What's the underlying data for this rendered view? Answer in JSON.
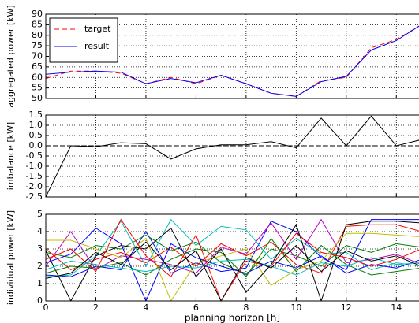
{
  "chart_data": [
    {
      "type": "line",
      "ylabel": "aggregated power [kW]",
      "x": [
        0,
        1,
        2,
        3,
        4,
        5,
        6,
        7,
        8,
        9,
        10,
        11,
        12,
        13,
        14,
        15
      ],
      "series": [
        {
          "name": "target",
          "color": "#ff0000",
          "style": "dashed",
          "values": [
            59.5,
            63,
            63,
            62,
            57,
            60,
            57,
            61,
            57,
            52.5,
            51,
            58.5,
            60,
            74,
            78,
            85
          ]
        },
        {
          "name": "result",
          "color": "#0000ff",
          "style": "solid",
          "values": [
            61.5,
            62.5,
            63,
            62.5,
            57,
            59.5,
            57.5,
            61,
            57,
            52.5,
            51,
            58,
            60.5,
            73,
            77.5,
            85
          ]
        }
      ],
      "xlim": [
        0,
        15
      ],
      "xticks": [
        0,
        2,
        4,
        6,
        8,
        10,
        12,
        14
      ],
      "xtick_labels": false,
      "ylim": [
        50,
        90
      ],
      "yticks": [
        50,
        55,
        60,
        65,
        70,
        75,
        80,
        85,
        90
      ],
      "grid": true,
      "legend": "upper left"
    },
    {
      "type": "line",
      "ylabel": "imbalance [kW]",
      "x": [
        0,
        1,
        2,
        3,
        4,
        5,
        6,
        7,
        8,
        9,
        10,
        11,
        12,
        13,
        14,
        15
      ],
      "series": [
        {
          "color": "#000000",
          "style": "solid",
          "values": [
            -2.5,
            0,
            -0.05,
            0.15,
            0.1,
            -0.65,
            -0.15,
            0.05,
            0.05,
            0.2,
            -0.1,
            1.35,
            0,
            1.45,
            0,
            0.3
          ]
        }
      ],
      "hline": 0,
      "xlim": [
        0,
        15
      ],
      "xticks": [
        0,
        2,
        4,
        6,
        8,
        10,
        12,
        14
      ],
      "xtick_labels": false,
      "ylim": [
        -2.5,
        1.5
      ],
      "yticks": [
        1.5,
        {
          "value": 1,
          "label": "1.0"
        },
        0.5,
        {
          "value": 0,
          "label": "0.0"
        },
        -0.5,
        {
          "value": -1,
          "label": "-1.0"
        },
        -1.5,
        {
          "value": -2,
          "label": "-2.0"
        },
        -2.5
      ],
      "grid": true
    },
    {
      "type": "line",
      "ylabel": "individual power [kW]",
      "xlabel": "planning horizon [h]",
      "x": [
        0,
        1,
        2,
        3,
        4,
        5,
        6,
        7,
        8,
        9,
        10,
        11,
        12,
        13,
        14,
        15
      ],
      "series": [
        {
          "color": "#0000ff",
          "style": "solid",
          "values": [
            1.5,
            1.4,
            2.0,
            1.8,
            4.0,
            1.6,
            2.2,
            1.7,
            1.9,
            4.6,
            4.0,
            2.5,
            1.8,
            4.7,
            4.7,
            4.7
          ]
        },
        {
          "color": "#008000",
          "style": "solid",
          "values": [
            2.8,
            2.5,
            3.2,
            3.0,
            3.8,
            2.9,
            3.4,
            2.2,
            1.5,
            3.0,
            2.6,
            2.0,
            3.2,
            2.8,
            3.3,
            3.1
          ]
        },
        {
          "color": "#ff0000",
          "style": "solid",
          "values": [
            3.0,
            1.8,
            2.4,
            2.8,
            2.2,
            3.1,
            2.0,
            3.3,
            2.6,
            3.4,
            2.1,
            1.6,
            4.3,
            4.4,
            4.4,
            4.0
          ]
        },
        {
          "color": "#00bfbf",
          "style": "solid",
          "values": [
            1.4,
            1.5,
            2.6,
            4.6,
            2.0,
            4.7,
            3.2,
            4.3,
            4.1,
            2.4,
            3.6,
            2.7,
            2.8,
            1.8,
            2.2,
            2.0
          ]
        },
        {
          "color": "#bf00bf",
          "style": "solid",
          "values": [
            2.0,
            4.0,
            1.8,
            2.6,
            2.4,
            2.1,
            1.6,
            3.1,
            2.7,
            4.5,
            2.4,
            4.7,
            2.2,
            2.4,
            2.7,
            2.1
          ]
        },
        {
          "color": "#bfbf00",
          "style": "solid",
          "values": [
            3.5,
            3.5,
            3.0,
            2.5,
            3.6,
            0.0,
            2.2,
            2.6,
            3.0,
            0.9,
            1.8,
            2.3,
            3.9,
            3.9,
            3.8,
            3.7
          ]
        },
        {
          "color": "#000000",
          "style": "solid",
          "values": [
            2.9,
            0.0,
            2.6,
            3.2,
            3.0,
            4.2,
            1.4,
            3.0,
            0.5,
            2.1,
            4.4,
            0.0,
            4.4,
            4.6,
            4.6,
            4.5
          ]
        },
        {
          "color": "#0000ff",
          "style": "solid",
          "values": [
            2.2,
            2.7,
            4.2,
            3.3,
            0.0,
            3.3,
            2.5,
            2.0,
            1.6,
            2.3,
            1.9,
            2.6,
            1.6,
            2.1,
            1.9,
            2.4
          ]
        },
        {
          "color": "#008000",
          "style": "solid",
          "values": [
            1.6,
            2.0,
            1.9,
            2.2,
            1.5,
            2.4,
            3.0,
            2.8,
            1.4,
            3.6,
            1.7,
            3.2,
            2.1,
            1.5,
            1.7,
            1.9
          ]
        },
        {
          "color": "#ff0000",
          "style": "solid",
          "values": [
            2.4,
            3.0,
            1.7,
            4.7,
            2.6,
            1.4,
            3.8,
            0.0,
            2.3,
            2.0,
            3.9,
            2.8,
            2.5,
            2.0,
            2.4,
            3.0
          ]
        },
        {
          "color": "#00bfbf",
          "style": "solid",
          "values": [
            1.8,
            2.3,
            2.1,
            1.9,
            1.7,
            2.0,
            1.9,
            2.3,
            2.4,
            2.0,
            1.5,
            2.2,
            2.0,
            2.5,
            2.1,
            2.2
          ]
        },
        {
          "color": "#000000",
          "style": "solid",
          "values": [
            1.3,
            1.6,
            2.8,
            2.1,
            3.4,
            1.8,
            2.9,
            0.0,
            2.5,
            1.9,
            3.2,
            1.7,
            2.9,
            2.3,
            2.6,
            2.0
          ]
        }
      ],
      "xlim": [
        0,
        15
      ],
      "xticks": [
        0,
        2,
        4,
        6,
        8,
        10,
        12,
        14
      ],
      "xtick_labels": true,
      "ylim": [
        0,
        5
      ],
      "yticks": [
        0,
        1,
        2,
        3,
        4,
        5
      ],
      "grid": true
    }
  ]
}
